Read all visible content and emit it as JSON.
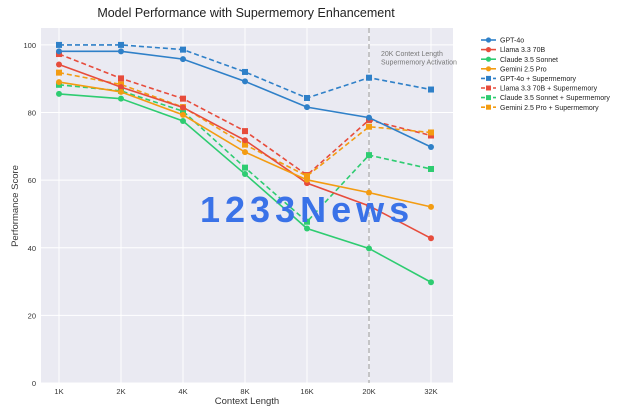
{
  "chart_data": {
    "type": "line",
    "title": "Model Performance with Supermemory Enhancement",
    "xlabel": "Context Length",
    "ylabel": "Performance Score",
    "categories": [
      "1K",
      "2K",
      "4K",
      "8K",
      "16K",
      "20K",
      "32K"
    ],
    "ylim": [
      0,
      105
    ],
    "yticks": [
      0,
      20,
      40,
      60,
      80,
      100
    ],
    "grid": true,
    "legend_position": "right",
    "series": [
      {
        "name": "GPT-4o",
        "color": "#2f80c8",
        "dashed": false,
        "marker": "circle",
        "values": [
          98.1,
          98.1,
          95.8,
          89.2,
          81.6,
          78.5,
          69.8
        ]
      },
      {
        "name": "Llama 3.3 70B",
        "color": "#e74c3c",
        "dashed": false,
        "marker": "circle",
        "values": [
          94.2,
          87.5,
          81.5,
          71.8,
          59.1,
          52.4,
          42.8
        ]
      },
      {
        "name": "Claude 3.5 Sonnet",
        "color": "#2ecc71",
        "dashed": false,
        "marker": "circle",
        "values": [
          85.5,
          84.1,
          77.5,
          61.8,
          45.7,
          39.8,
          29.8
        ]
      },
      {
        "name": "Gemini 2.5 Pro",
        "color": "#f39c12",
        "dashed": false,
        "marker": "circle",
        "values": [
          89.0,
          86.1,
          79.3,
          68.3,
          60.1,
          56.3,
          52.1
        ]
      },
      {
        "name": "GPT-4o + Supermemory",
        "color": "#2f80c8",
        "dashed": true,
        "marker": "square",
        "values": [
          100.0,
          100.0,
          98.6,
          92.0,
          84.3,
          90.3,
          86.8
        ]
      },
      {
        "name": "Llama 3.3 70B + Supermemory",
        "color": "#e74c3c",
        "dashed": true,
        "marker": "square",
        "values": [
          97.3,
          90.1,
          84.1,
          74.5,
          61.5,
          77.8,
          73.2
        ]
      },
      {
        "name": "Claude 3.5 Sonnet + Supermemory",
        "color": "#2ecc71",
        "dashed": true,
        "marker": "square",
        "values": [
          88.2,
          86.4,
          80.4,
          63.7,
          47.7,
          67.4,
          63.3
        ]
      },
      {
        "name": "Gemini 2.5 Pro + Supermemory",
        "color": "#f39c12",
        "dashed": true,
        "marker": "square",
        "values": [
          91.8,
          88.3,
          81.6,
          70.5,
          61.2,
          75.8,
          74.1
        ]
      }
    ],
    "annotations": [
      {
        "at_category": "20K",
        "style": "dashed-vertical-line",
        "color": "#aaaaaa",
        "text_lines": [
          "20K Context Length",
          "Supermemory Activation"
        ]
      }
    ],
    "watermark": "1233News"
  }
}
